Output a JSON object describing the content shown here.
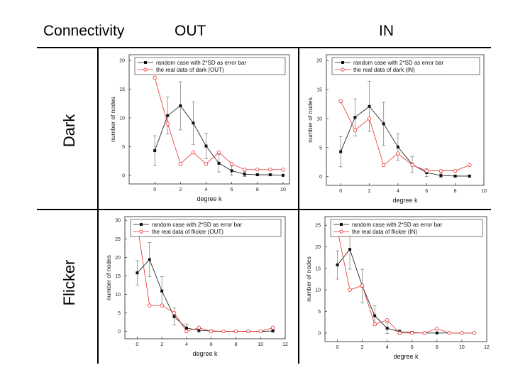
{
  "header": {
    "corner_label": "Connectivity",
    "col_out": "OUT",
    "col_in": "IN"
  },
  "rows": {
    "dark": "Dark",
    "flicker": "Flicker"
  },
  "colors": {
    "random": "#111111",
    "real": "#e8302a",
    "frame": "#222222"
  },
  "chart_data": [
    {
      "id": "dark-out",
      "type": "line",
      "xlabel": "degree k",
      "ylabel": "number of nodes",
      "xlim": [
        -2,
        10.5
      ],
      "ylim": [
        -1.5,
        21
      ],
      "xticks": [
        0,
        2,
        4,
        6,
        8,
        10
      ],
      "yticks": [
        0,
        5,
        10,
        15,
        20
      ],
      "series": [
        {
          "name": "random case with 2*SD as error bar",
          "marker": "filled-square",
          "x": [
            0,
            1,
            2,
            3,
            4,
            5,
            6,
            7,
            8,
            9,
            10
          ],
          "y": [
            4.3,
            10.4,
            12.1,
            9.1,
            5.1,
            2.1,
            0.8,
            0.2,
            0.1,
            0.1,
            0
          ],
          "err": [
            2.6,
            3.2,
            4.2,
            3.7,
            2.2,
            1.5,
            0.8,
            0.4,
            0.2,
            0.2,
            0
          ]
        },
        {
          "name": "the real data of dark (OUT)",
          "marker": "open-circle",
          "x": [
            0,
            1,
            2,
            3,
            4,
            5,
            6,
            7,
            8,
            9,
            10
          ],
          "y": [
            17,
            9,
            2,
            4,
            2,
            4,
            2,
            1,
            1,
            1,
            1
          ]
        }
      ]
    },
    {
      "id": "dark-in",
      "type": "line",
      "xlabel": "degree k",
      "ylabel": "number of nodes",
      "xlim": [
        -1,
        10
      ],
      "ylim": [
        -1.5,
        21
      ],
      "xticks": [
        0,
        2,
        4,
        6,
        8,
        10
      ],
      "yticks": [
        0,
        5,
        10,
        15,
        20
      ],
      "series": [
        {
          "name": "random case with 2*SD as error bar",
          "marker": "filled-square",
          "x": [
            0,
            1,
            2,
            3,
            4,
            5,
            6,
            7,
            8,
            9
          ],
          "y": [
            4.3,
            10.2,
            12.1,
            9.1,
            5.1,
            2.1,
            0.7,
            0.2,
            0.1,
            0.1
          ],
          "err": [
            2.6,
            3.2,
            4.3,
            3.7,
            2.3,
            1.4,
            0.7,
            0.4,
            0.2,
            0.2
          ]
        },
        {
          "name": "the real data of dark (IN)",
          "marker": "open-circle",
          "x": [
            0,
            1,
            2,
            3,
            4,
            5,
            6,
            7,
            8,
            9
          ],
          "y": [
            13,
            8,
            10,
            2,
            4,
            2,
            1,
            1,
            1,
            2
          ]
        }
      ]
    },
    {
      "id": "flicker-out",
      "type": "line",
      "xlabel": "degree k",
      "ylabel": "number of nodes",
      "xlim": [
        -1,
        12
      ],
      "ylim": [
        -2,
        31
      ],
      "xticks": [
        0,
        2,
        4,
        6,
        8,
        10,
        12
      ],
      "yticks": [
        0,
        5,
        10,
        15,
        20,
        25,
        30
      ],
      "series": [
        {
          "name": "random case with 2*SD as error bar",
          "marker": "filled-square",
          "x": [
            0,
            1,
            2,
            3,
            4,
            5,
            6,
            7,
            8,
            9,
            10,
            11
          ],
          "y": [
            15.8,
            19.4,
            10.9,
            4,
            0.9,
            0.3,
            0.1,
            0,
            0,
            0,
            0,
            0.1
          ],
          "err": [
            3.3,
            4.6,
            3.9,
            2.3,
            1.1,
            0.6,
            0.3,
            0,
            0,
            0,
            0,
            0.2
          ]
        },
        {
          "name": "the real data of flicker (OUT)",
          "marker": "open-circle",
          "x": [
            0,
            1,
            2,
            3,
            4,
            5,
            6,
            7,
            8,
            9,
            10,
            11
          ],
          "y": [
            29,
            7,
            7,
            5,
            0,
            1,
            0,
            0,
            0,
            0,
            0,
            1
          ]
        }
      ]
    },
    {
      "id": "flicker-in",
      "type": "line",
      "xlabel": "degree k",
      "ylabel": "number of nodes",
      "xlim": [
        -1,
        12
      ],
      "ylim": [
        -2,
        27
      ],
      "xticks": [
        0,
        2,
        4,
        6,
        8,
        10,
        12
      ],
      "yticks": [
        0,
        5,
        10,
        15,
        20,
        25
      ],
      "series": [
        {
          "name": "random case with 2*SD as error bar",
          "marker": "filled-square",
          "x": [
            0,
            1,
            2,
            3,
            4,
            5,
            6,
            7,
            8,
            9,
            10,
            11
          ],
          "y": [
            15.8,
            19.4,
            10.9,
            4,
            1.1,
            0.3,
            0.1,
            0,
            0,
            0,
            0,
            0
          ],
          "err": [
            3.3,
            4.6,
            3.9,
            2.3,
            1.2,
            0.6,
            0.3,
            0,
            0,
            0,
            0,
            0
          ]
        },
        {
          "name": "the real data of flicker (IN)",
          "marker": "open-circle",
          "x": [
            0,
            1,
            2,
            3,
            4,
            5,
            6,
            7,
            8,
            9,
            10,
            11
          ],
          "y": [
            24,
            10,
            11,
            2,
            3,
            0,
            0,
            0,
            1,
            0,
            0,
            0
          ]
        }
      ]
    }
  ]
}
